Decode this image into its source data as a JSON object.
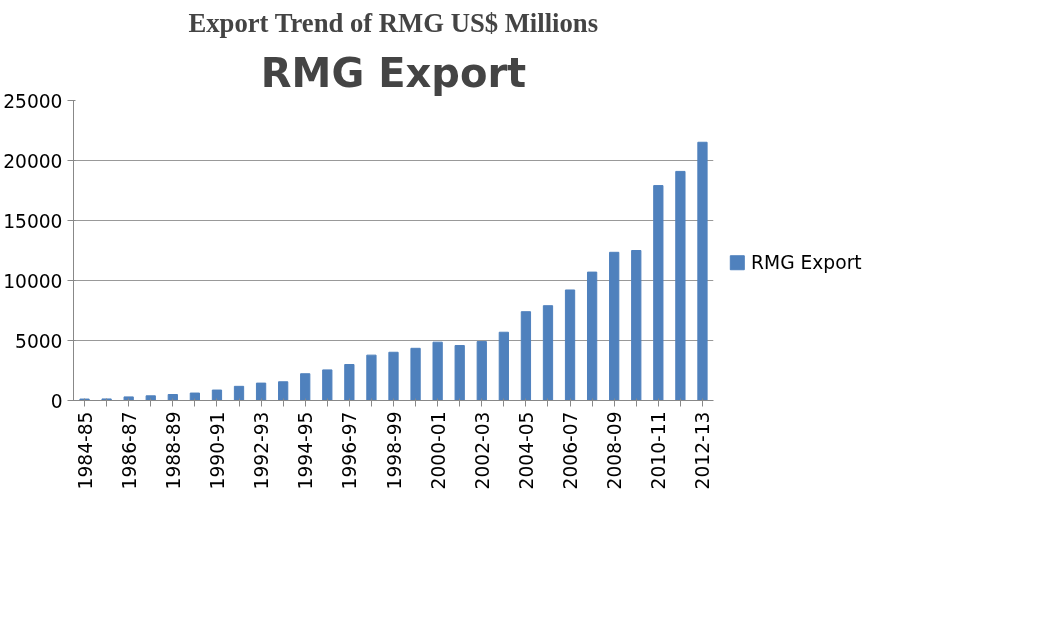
{
  "chart_data": {
    "type": "bar",
    "title": "Export Trend of RMG US$ Millions",
    "subtitle": "RMG Export",
    "categories": [
      "1984-85",
      null,
      "1986-87",
      null,
      "1988-89",
      null,
      "1990-91",
      null,
      "1992-93",
      null,
      "1994-95",
      null,
      "1996-97",
      null,
      "1998-99",
      null,
      "2000-01",
      null,
      "2002-03",
      null,
      "2004-05",
      null,
      "2006-07",
      null,
      "2008-09",
      null,
      "2010-11",
      null,
      "2012-13"
    ],
    "series": [
      {
        "name": "RMG Export",
        "color": "#4f81bd",
        "values": [
          120,
          130,
          300,
          390,
          500,
          620,
          870,
          1180,
          1450,
          1560,
          2230,
          2550,
          3000,
          3780,
          4020,
          4350,
          4860,
          4580,
          4910,
          5690,
          7400,
          7900,
          9210,
          10700,
          12350,
          12500,
          17910,
          19090,
          21520
        ]
      }
    ],
    "ylim": [
      0,
      25000
    ],
    "yticks": [
      0,
      5000,
      10000,
      15000,
      20000,
      25000
    ],
    "grid": "y",
    "legend": "right"
  }
}
